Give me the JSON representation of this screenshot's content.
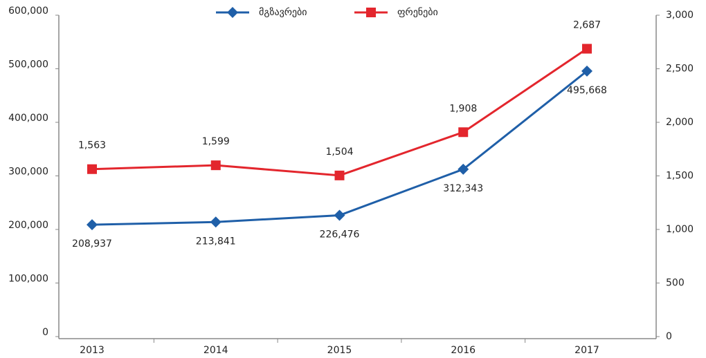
{
  "chart_data": {
    "type": "line",
    "categories": [
      "2013",
      "2014",
      "2015",
      "2016",
      "2017"
    ],
    "series": [
      {
        "name": "მგზავრები",
        "color": "#1f5fa8",
        "marker": "diamond",
        "values": [
          208937,
          213841,
          226476,
          312343,
          495668
        ],
        "value_labels": [
          "208,937",
          "213,841",
          "226,476",
          "312,343",
          "495,668"
        ]
      },
      {
        "name": "ფრენები",
        "color": "#e3262d",
        "marker": "square",
        "axis": "y2",
        "values": [
          1563,
          1599,
          1504,
          1908,
          2687
        ],
        "value_labels": [
          "1,563",
          "1,599",
          "1,504",
          "1,908",
          "2,687"
        ]
      }
    ],
    "ylim": [
      0,
      600000
    ],
    "yticks": [
      0,
      {
        "value": 100000,
        "label": "100,000"
      },
      {
        "value": 200000,
        "label": "200,000"
      },
      {
        "value": 300000,
        "label": "300,000"
      },
      {
        "value": 400000,
        "label": "400,000"
      },
      {
        "value": 500000,
        "label": "500,000"
      },
      {
        "value": 600000,
        "label": "600,000"
      }
    ],
    "y2lim": [
      0,
      3000
    ],
    "y2ticks": [
      0,
      500,
      {
        "value": 1000,
        "label": "1,000"
      },
      {
        "value": 1500,
        "label": "1,500"
      },
      {
        "value": 2000,
        "label": "2,000"
      },
      {
        "value": 2500,
        "label": "2,500"
      },
      {
        "value": 3000,
        "label": "3,000"
      }
    ],
    "legend": "top",
    "grid": false
  }
}
